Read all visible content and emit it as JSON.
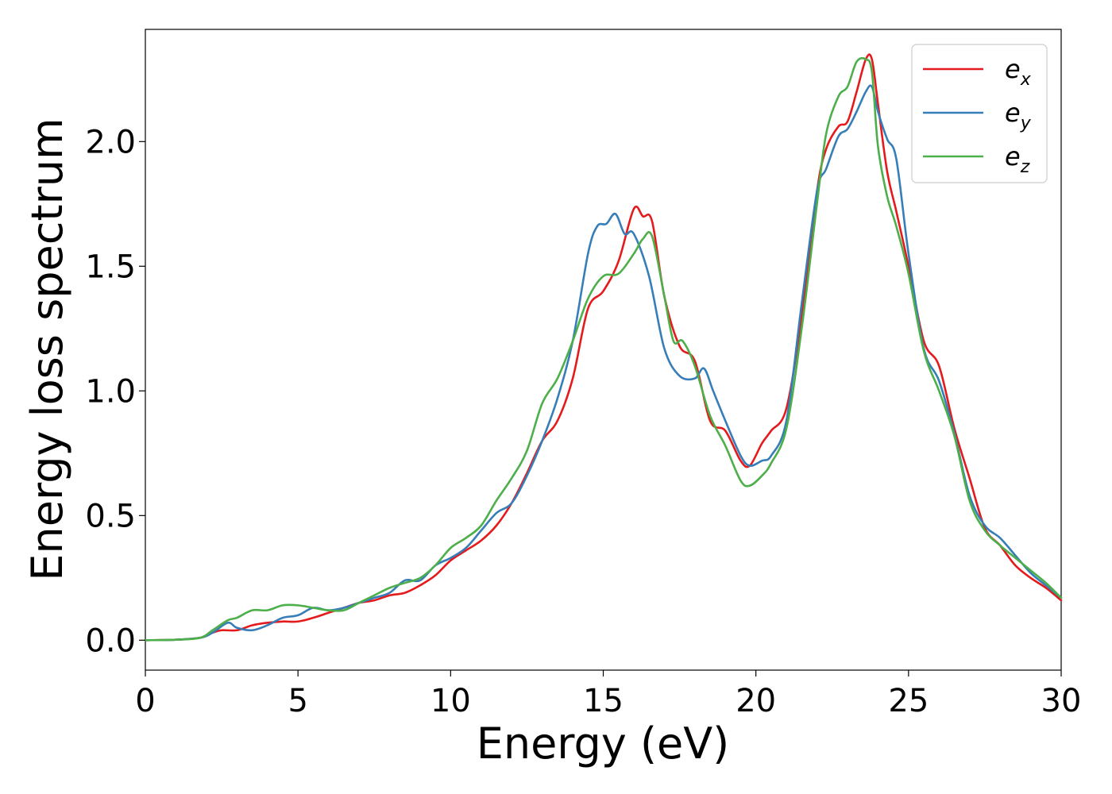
{
  "chart_data": {
    "type": "line",
    "title": "",
    "xlabel": "Energy (eV)",
    "ylabel": "Energy loss spectrum",
    "xlim": [
      0,
      30
    ],
    "ylim": [
      -0.12,
      2.45
    ],
    "xticks": [
      0,
      5,
      10,
      15,
      20,
      25,
      30
    ],
    "yticks": [
      0.0,
      0.5,
      1.0,
      1.5,
      2.0
    ],
    "xtick_labels": [
      "0",
      "5",
      "10",
      "15",
      "20",
      "25",
      "30"
    ],
    "ytick_labels": [
      "0.0",
      "0.5",
      "1.0",
      "1.5",
      "2.0"
    ],
    "grid": false,
    "legend_position": "top-right",
    "series": [
      {
        "name": "e_x",
        "legend_base": "e",
        "legend_sub": "x",
        "color": "#e41a1c",
        "x": [
          0,
          1,
          1.8,
          2.2,
          2.5,
          3.0,
          3.5,
          4.0,
          4.5,
          5.0,
          5.5,
          6.0,
          6.5,
          7.0,
          7.5,
          8.0,
          8.5,
          9.0,
          9.5,
          10.0,
          10.5,
          11.0,
          11.5,
          12.0,
          12.5,
          13.0,
          13.5,
          14.0,
          14.5,
          15.0,
          15.5,
          16.0,
          16.3,
          16.6,
          17.0,
          17.5,
          18.0,
          18.5,
          19.0,
          19.5,
          19.8,
          20.2,
          20.5,
          21.0,
          21.5,
          22.0,
          22.3,
          22.7,
          23.0,
          23.3,
          23.6,
          23.8,
          24.0,
          24.3,
          24.6,
          25.0,
          25.5,
          26.0,
          26.5,
          27.0,
          27.5,
          28.0,
          28.5,
          29.0,
          29.5,
          30.0
        ],
        "y": [
          0.0,
          0.002,
          0.01,
          0.03,
          0.04,
          0.04,
          0.06,
          0.07,
          0.075,
          0.075,
          0.09,
          0.11,
          0.13,
          0.15,
          0.16,
          0.18,
          0.19,
          0.22,
          0.26,
          0.32,
          0.36,
          0.4,
          0.46,
          0.55,
          0.67,
          0.8,
          0.88,
          1.05,
          1.33,
          1.4,
          1.52,
          1.73,
          1.7,
          1.68,
          1.38,
          1.18,
          1.12,
          0.88,
          0.84,
          0.72,
          0.7,
          0.79,
          0.84,
          0.93,
          1.3,
          1.8,
          1.97,
          2.06,
          2.08,
          2.2,
          2.33,
          2.33,
          2.15,
          1.88,
          1.72,
          1.5,
          1.2,
          1.1,
          0.85,
          0.65,
          0.45,
          0.38,
          0.3,
          0.25,
          0.21,
          0.16
        ]
      },
      {
        "name": "e_y",
        "legend_base": "e",
        "legend_sub": "y",
        "color": "#377eb8",
        "x": [
          0,
          1,
          1.8,
          2.2,
          2.7,
          3.0,
          3.5,
          4.0,
          4.5,
          5.0,
          5.5,
          6.0,
          6.5,
          7.0,
          7.5,
          8.0,
          8.5,
          9.0,
          9.5,
          10.0,
          10.5,
          11.0,
          11.5,
          12.0,
          12.5,
          13.0,
          13.5,
          14.0,
          14.5,
          14.8,
          15.1,
          15.4,
          15.7,
          16.0,
          16.5,
          17.0,
          17.5,
          18.0,
          18.3,
          18.6,
          19.0,
          19.5,
          19.8,
          20.2,
          20.5,
          21.0,
          21.5,
          22.0,
          22.3,
          22.7,
          23.0,
          23.3,
          23.6,
          23.8,
          24.0,
          24.3,
          24.6,
          25.0,
          25.5,
          26.0,
          26.5,
          27.0,
          27.5,
          28.0,
          28.5,
          29.0,
          29.5,
          30.0
        ],
        "y": [
          0.0,
          0.002,
          0.01,
          0.03,
          0.07,
          0.05,
          0.04,
          0.06,
          0.09,
          0.1,
          0.13,
          0.12,
          0.13,
          0.15,
          0.17,
          0.19,
          0.24,
          0.24,
          0.3,
          0.33,
          0.37,
          0.44,
          0.51,
          0.55,
          0.66,
          0.8,
          0.97,
          1.2,
          1.55,
          1.66,
          1.67,
          1.71,
          1.63,
          1.63,
          1.46,
          1.17,
          1.06,
          1.05,
          1.09,
          1.0,
          0.88,
          0.74,
          0.7,
          0.72,
          0.74,
          0.88,
          1.35,
          1.8,
          1.89,
          2.02,
          2.05,
          2.12,
          2.2,
          2.22,
          2.12,
          2.01,
          1.93,
          1.55,
          1.17,
          1.04,
          0.83,
          0.58,
          0.46,
          0.41,
          0.34,
          0.27,
          0.22,
          0.17
        ]
      },
      {
        "name": "e_z",
        "legend_base": "e",
        "legend_sub": "z",
        "color": "#4daf4a",
        "x": [
          0,
          1,
          1.8,
          2.2,
          2.7,
          3.0,
          3.5,
          4.0,
          4.5,
          5.0,
          5.5,
          6.0,
          6.5,
          7.0,
          7.5,
          8.0,
          8.5,
          9.0,
          9.5,
          10.0,
          10.5,
          11.0,
          11.5,
          12.0,
          12.5,
          13.0,
          13.5,
          14.0,
          14.5,
          15.0,
          15.5,
          16.0,
          16.3,
          16.6,
          17.0,
          17.3,
          17.6,
          18.0,
          18.5,
          19.0,
          19.5,
          19.8,
          20.2,
          20.5,
          21.0,
          21.5,
          22.0,
          22.3,
          22.7,
          23.0,
          23.3,
          23.6,
          23.8,
          24.0,
          24.3,
          24.6,
          25.0,
          25.5,
          26.0,
          26.5,
          27.0,
          27.5,
          28.0,
          28.5,
          29.0,
          29.5,
          30.0
        ],
        "y": [
          0.0,
          0.002,
          0.01,
          0.04,
          0.08,
          0.09,
          0.12,
          0.12,
          0.14,
          0.14,
          0.13,
          0.12,
          0.12,
          0.15,
          0.18,
          0.21,
          0.23,
          0.25,
          0.3,
          0.37,
          0.41,
          0.46,
          0.56,
          0.65,
          0.76,
          0.95,
          1.05,
          1.2,
          1.37,
          1.46,
          1.47,
          1.55,
          1.61,
          1.62,
          1.38,
          1.2,
          1.2,
          1.1,
          0.9,
          0.78,
          0.64,
          0.62,
          0.66,
          0.71,
          0.85,
          1.25,
          1.75,
          2.03,
          2.18,
          2.22,
          2.32,
          2.33,
          2.28,
          1.98,
          1.78,
          1.66,
          1.47,
          1.16,
          1.0,
          0.82,
          0.56,
          0.44,
          0.38,
          0.33,
          0.28,
          0.23,
          0.17
        ]
      }
    ]
  }
}
